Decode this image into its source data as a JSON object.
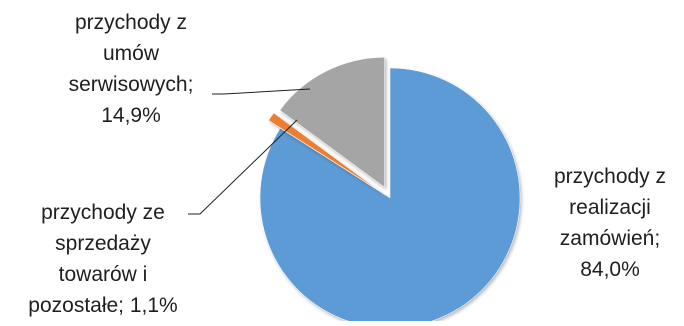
{
  "chart_data": {
    "type": "pie",
    "title": "",
    "series": [
      {
        "name": "",
        "slices": [
          {
            "label_lines": [
              "przychody z",
              "realizacji",
              "zamówień;",
              "84,0%"
            ],
            "value": 84.0,
            "color": "#5b9bd5"
          },
          {
            "label_lines": [
              "przychody ze",
              "sprzedaży",
              "towarów i",
              "pozostałe; 1,1%"
            ],
            "value": 1.1,
            "color": "#ed7d31"
          },
          {
            "label_lines": [
              "przychody z",
              "umów",
              "serwisowych;",
              "14,9%"
            ],
            "value": 14.9,
            "color": "#a5a5a5"
          }
        ]
      }
    ],
    "legend": "none",
    "exploded": true
  }
}
